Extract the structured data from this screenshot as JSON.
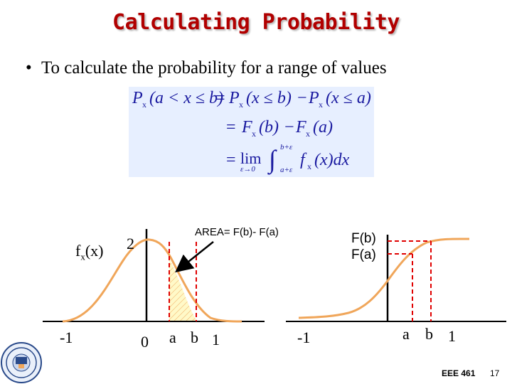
{
  "slide": {
    "title": "Calculating Probability",
    "bullet": "To calculate the probability for a range of values"
  },
  "formula": {
    "line1_lhs": "P",
    "line1_lhs_sub": "x",
    "line1_lhs_args": "(a < x ≤ b)",
    "line1_eq": "=",
    "line1_t1": "P",
    "line1_t1_sub": "x",
    "line1_t1_args": "(x ≤ b)",
    "line1_minus": "−",
    "line1_t2": "P",
    "line1_t2_sub": "x",
    "line1_t2_args": "(x ≤ a)",
    "line2_eq": "=",
    "line2_t1": "F",
    "line2_t1_sub": "x",
    "line2_t1_args": "(b)",
    "line2_minus": "−",
    "line2_t2": "F",
    "line2_t2_sub": "x",
    "line2_t2_args": "(a)",
    "line3_eq": "=",
    "line3_lim": "lim",
    "line3_lim_sub": "ε→0",
    "line3_upper": "b+ε",
    "line3_lower": "a+ε",
    "line3_f": "f",
    "line3_f_sub": "x",
    "line3_args": "(x)dx"
  },
  "pdf_plot": {
    "ylabel_main": "f",
    "ylabel_sub": "x",
    "ylabel_args": "(x)",
    "peak_label": "2",
    "x_minus1": "-1",
    "x_zero": "0",
    "x_a": "a",
    "x_b": "b",
    "x_one": "1",
    "area_note": "AREA= F(b)- F(a)"
  },
  "cdf_plot": {
    "label_fb": "F(b)",
    "label_fa": "F(a)",
    "x_minus1": "-1",
    "x_a": "a",
    "x_b": "b",
    "x_one": "1"
  },
  "footer": {
    "course": "EEE 461",
    "page": "17"
  },
  "colors": {
    "title": "#b10000",
    "curve": "#f0a65a",
    "dashed": "#e00000",
    "formula_bg": "#e7efff",
    "formula_text": "#1a1aa0"
  }
}
